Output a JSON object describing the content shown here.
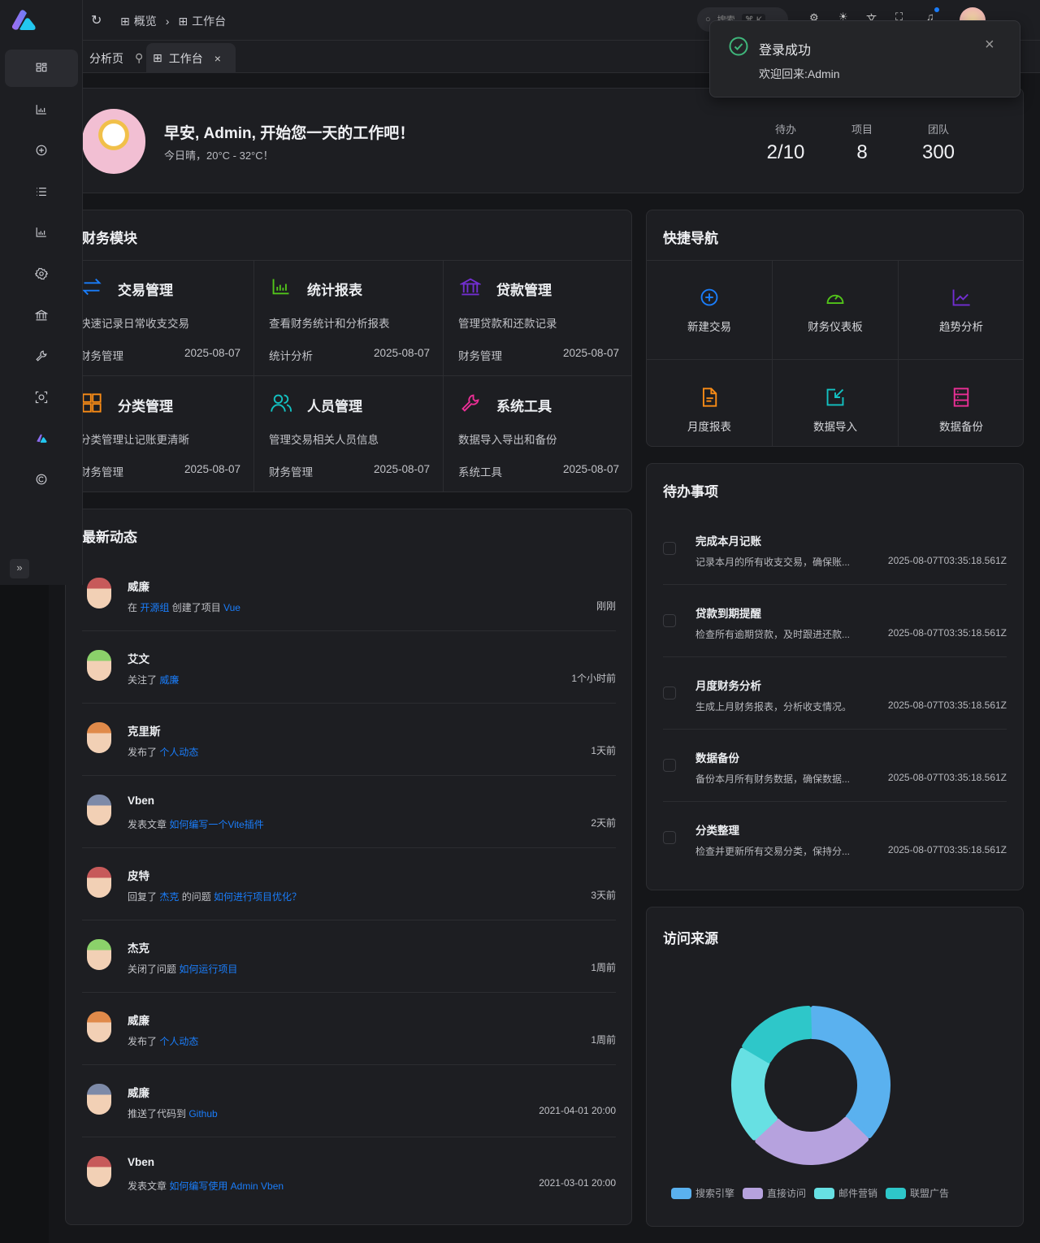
{
  "header": {
    "breadcrumb": [
      {
        "label": "概览",
        "icon": "grid-icon"
      },
      {
        "label": "工作台",
        "icon": "grid-icon"
      }
    ],
    "search_placeholder": "搜索",
    "search_shortcut": "⌘ K"
  },
  "tabs": [
    {
      "label": "分析页",
      "pinned": true
    },
    {
      "label": "工作台",
      "active": true
    }
  ],
  "toast": {
    "title": "登录成功",
    "message": "欢迎回来:Admin",
    "status_color": "#3fb67b"
  },
  "sidebar": {
    "items": [
      "dashboard-icon",
      "bar-chart-icon",
      "plus-circle-icon",
      "list-icon",
      "bar-chart-icon",
      "settings-icon",
      "bank-icon",
      "wrench-icon",
      "scan-icon",
      "vben-logo-icon",
      "copyright-icon"
    ],
    "active": 0
  },
  "welcome": {
    "greeting": "早安, Admin, 开始您一天的工作吧！",
    "weather": "今日晴，20°C - 32°C！",
    "stats": [
      {
        "label": "待办",
        "value": "2/10"
      },
      {
        "label": "项目",
        "value": "8"
      },
      {
        "label": "团队",
        "value": "300"
      }
    ]
  },
  "projects": {
    "title": "财务模块",
    "items": [
      {
        "title": "交易管理",
        "desc": "快速记录日常收支交易",
        "group": "财务管理",
        "date": "2025-08-07",
        "icon": "swap-icon",
        "color": "#1a7dfa"
      },
      {
        "title": "统计报表",
        "desc": "查看财务统计和分析报表",
        "group": "统计分析",
        "date": "2025-08-07",
        "icon": "bar-chart-icon",
        "color": "#52c41a"
      },
      {
        "title": "贷款管理",
        "desc": "管理贷款和还款记录",
        "group": "财务管理",
        "date": "2025-08-07",
        "icon": "bank-icon",
        "color": "#722ed1"
      },
      {
        "title": "分类管理",
        "desc": "分类管理让记账更清晰",
        "group": "财务管理",
        "date": "2025-08-07",
        "icon": "grid-icon",
        "color": "#fa8c16"
      },
      {
        "title": "人员管理",
        "desc": "管理交易相关人员信息",
        "group": "财务管理",
        "date": "2025-08-07",
        "icon": "users-icon",
        "color": "#13c2c2"
      },
      {
        "title": "系统工具",
        "desc": "数据导入导出和备份",
        "group": "系统工具",
        "date": "2025-08-07",
        "icon": "wrench-icon",
        "color": "#eb2f96"
      }
    ]
  },
  "quicknav": {
    "title": "快捷导航",
    "items": [
      {
        "label": "新建交易",
        "icon": "plus-circle-icon",
        "color": "#1a7dfa"
      },
      {
        "label": "财务仪表板",
        "icon": "gauge-icon",
        "color": "#52c41a"
      },
      {
        "label": "趋势分析",
        "icon": "line-chart-icon",
        "color": "#722ed1"
      },
      {
        "label": "月度报表",
        "icon": "file-icon",
        "color": "#fa8c16"
      },
      {
        "label": "数据导入",
        "icon": "import-icon",
        "color": "#13c2c2"
      },
      {
        "label": "数据备份",
        "icon": "database-icon",
        "color": "#eb2f96"
      }
    ]
  },
  "todo": {
    "title": "待办事项",
    "items": [
      {
        "title": "完成本月记账",
        "desc": "记录本月的所有收支交易，确保账...",
        "date": "2025-08-07T03:35:18.561Z"
      },
      {
        "title": "贷款到期提醒",
        "desc": "检查所有逾期贷款，及时跟进还款...",
        "date": "2025-08-07T03:35:18.561Z"
      },
      {
        "title": "月度财务分析",
        "desc": "生成上月财务报表，分析收支情况。",
        "date": "2025-08-07T03:35:18.561Z"
      },
      {
        "title": "数据备份",
        "desc": "备份本月所有财务数据，确保数据...",
        "date": "2025-08-07T03:35:18.561Z"
      },
      {
        "title": "分类整理",
        "desc": "检查并更新所有交易分类，保持分...",
        "date": "2025-08-07T03:35:18.561Z"
      }
    ]
  },
  "activity": {
    "title": "最新动态",
    "items": [
      {
        "name": "威廉",
        "parts": [
          {
            "t": "在 "
          },
          {
            "t": "开源组",
            "link": true
          },
          {
            "t": " 创建了项目 "
          },
          {
            "t": "Vue",
            "link": true
          }
        ],
        "time": "刚刚"
      },
      {
        "name": "艾文",
        "parts": [
          {
            "t": "关注了 "
          },
          {
            "t": "威廉",
            "link": true
          }
        ],
        "time": "1个小时前"
      },
      {
        "name": "克里斯",
        "parts": [
          {
            "t": "发布了 "
          },
          {
            "t": "个人动态",
            "link": true
          }
        ],
        "time": "1天前"
      },
      {
        "name": "Vben",
        "parts": [
          {
            "t": "发表文章 "
          },
          {
            "t": "如何编写一个Vite插件",
            "link": true
          }
        ],
        "time": "2天前"
      },
      {
        "name": "皮特",
        "parts": [
          {
            "t": "回复了 "
          },
          {
            "t": "杰克",
            "link": true
          },
          {
            "t": " 的问题 "
          },
          {
            "t": "如何进行项目优化？",
            "link": true
          }
        ],
        "time": "3天前"
      },
      {
        "name": "杰克",
        "parts": [
          {
            "t": "关闭了问题 "
          },
          {
            "t": "如何运行项目",
            "link": true
          }
        ],
        "time": "1周前"
      },
      {
        "name": "威廉",
        "parts": [
          {
            "t": "发布了 "
          },
          {
            "t": "个人动态",
            "link": true
          }
        ],
        "time": "1周前"
      },
      {
        "name": "威廉",
        "parts": [
          {
            "t": "推送了代码到 "
          },
          {
            "t": "Github",
            "link": true
          }
        ],
        "time": "2021-04-01 20:00"
      },
      {
        "name": "Vben",
        "parts": [
          {
            "t": "发表文章 "
          },
          {
            "t": "如何编写使用 Admin Vben",
            "link": true
          }
        ],
        "time": "2021-03-01 20:00"
      }
    ]
  },
  "chart_data": {
    "type": "pie",
    "title": "访问来源",
    "donut": true,
    "legend_position": "bottom",
    "categories": [
      "搜索引擎",
      "直接访问",
      "邮件营销",
      "联盟广告"
    ],
    "values": [
      1048,
      735,
      580,
      484
    ],
    "colors": [
      "#5ab1ef",
      "#b6a2de",
      "#67e0e3",
      "#2ec7c9"
    ]
  }
}
